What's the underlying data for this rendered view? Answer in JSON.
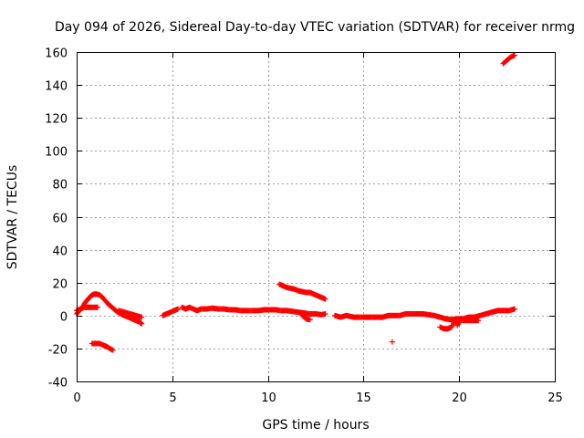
{
  "chart_data": {
    "type": "scatter",
    "title": "Day 094 of 2026, Sidereal Day-to-day VTEC variation (SDTVAR) for receiver nrmg",
    "xlabel": "GPS time / hours",
    "ylabel": "SDTVAR / TECUs",
    "xlim": [
      0,
      25
    ],
    "ylim": [
      -40,
      160
    ],
    "xticks": [
      0,
      5,
      10,
      15,
      20,
      25
    ],
    "yticks": [
      -40,
      -20,
      0,
      20,
      40,
      60,
      80,
      100,
      120,
      140,
      160
    ],
    "grid": true,
    "marker": "+",
    "color": "#ff0000",
    "series": [
      {
        "name": "SDTVAR",
        "segments": [
          [
            [
              0.0,
              1
            ],
            [
              0.15,
              3
            ],
            [
              0.3,
              5
            ],
            [
              0.45,
              8
            ],
            [
              0.6,
              10
            ],
            [
              0.75,
              12
            ],
            [
              0.9,
              13
            ],
            [
              1.05,
              13
            ],
            [
              1.2,
              12.5
            ],
            [
              1.35,
              11
            ],
            [
              1.5,
              9
            ],
            [
              1.65,
              7
            ],
            [
              1.8,
              5.5
            ],
            [
              1.95,
              4
            ],
            [
              2.1,
              2.5
            ],
            [
              2.3,
              1
            ],
            [
              2.5,
              0
            ],
            [
              2.7,
              -1
            ],
            [
              2.9,
              -2
            ],
            [
              3.1,
              -3
            ],
            [
              3.3,
              -4
            ],
            [
              3.4,
              -5
            ]
          ],
          [
            [
              0.0,
              3
            ],
            [
              0.2,
              4
            ],
            [
              0.4,
              5
            ],
            [
              0.6,
              5
            ],
            [
              0.8,
              5
            ],
            [
              1.0,
              5
            ],
            [
              1.1,
              5
            ]
          ],
          [
            [
              2.2,
              3
            ],
            [
              2.5,
              2
            ],
            [
              2.8,
              1
            ],
            [
              3.1,
              0
            ],
            [
              3.4,
              -1
            ]
          ],
          [
            [
              0.8,
              -17
            ],
            [
              1.0,
              -17
            ],
            [
              1.2,
              -17
            ],
            [
              1.4,
              -18
            ],
            [
              1.6,
              -19
            ],
            [
              1.8,
              -20.5
            ],
            [
              1.9,
              -21
            ]
          ],
          [
            [
              4.5,
              0
            ],
            [
              4.7,
              1
            ],
            [
              4.9,
              2
            ],
            [
              5.1,
              3
            ],
            [
              5.3,
              4
            ]
          ],
          [
            [
              5.5,
              5
            ],
            [
              5.7,
              4
            ],
            [
              5.9,
              5
            ],
            [
              6.1,
              4
            ],
            [
              6.3,
              3
            ],
            [
              6.5,
              4
            ],
            [
              6.8,
              4
            ],
            [
              7.1,
              4.5
            ],
            [
              7.4,
              4
            ],
            [
              7.7,
              4
            ],
            [
              8.0,
              3.5
            ],
            [
              8.3,
              3.5
            ],
            [
              8.6,
              3
            ],
            [
              8.9,
              3
            ],
            [
              9.2,
              3
            ],
            [
              9.5,
              3
            ],
            [
              9.8,
              3.5
            ],
            [
              10.1,
              3.5
            ],
            [
              10.4,
              3.5
            ],
            [
              10.7,
              3
            ],
            [
              11.0,
              3
            ],
            [
              11.3,
              2.5
            ],
            [
              11.6,
              2
            ],
            [
              11.9,
              1.5
            ],
            [
              12.2,
              1
            ],
            [
              12.5,
              1
            ],
            [
              12.8,
              0.5
            ],
            [
              13.0,
              1
            ]
          ],
          [
            [
              10.6,
              19
            ],
            [
              10.8,
              18
            ],
            [
              11.0,
              17
            ],
            [
              11.2,
              16.5
            ],
            [
              11.4,
              16
            ],
            [
              11.6,
              15
            ],
            [
              11.8,
              14.5
            ],
            [
              12.0,
              14
            ],
            [
              12.2,
              14
            ],
            [
              12.4,
              13
            ],
            [
              12.6,
              12
            ],
            [
              12.8,
              11
            ],
            [
              13.0,
              10
            ]
          ],
          [
            [
              11.8,
              0
            ],
            [
              12.0,
              -2
            ],
            [
              12.2,
              -2.5
            ]
          ],
          [
            [
              13.5,
              0
            ],
            [
              13.8,
              -1
            ],
            [
              14.1,
              0
            ],
            [
              14.5,
              -1
            ],
            [
              14.8,
              -1
            ],
            [
              15.1,
              -1
            ],
            [
              15.4,
              -1
            ],
            [
              15.7,
              -1
            ],
            [
              16.0,
              -1
            ],
            [
              16.3,
              0
            ],
            [
              16.6,
              0
            ],
            [
              16.9,
              0
            ],
            [
              17.2,
              1
            ],
            [
              17.5,
              1
            ],
            [
              17.8,
              1
            ],
            [
              18.1,
              1
            ],
            [
              18.4,
              0.5
            ],
            [
              18.7,
              0
            ],
            [
              19.0,
              -1
            ],
            [
              19.3,
              -2
            ],
            [
              19.6,
              -2.5
            ],
            [
              19.9,
              -2
            ],
            [
              20.2,
              -2
            ],
            [
              20.5,
              -1
            ],
            [
              20.8,
              -1
            ],
            [
              21.1,
              0
            ],
            [
              21.4,
              1
            ],
            [
              21.7,
              2
            ],
            [
              22.0,
              3
            ],
            [
              22.3,
              3
            ],
            [
              22.6,
              3
            ],
            [
              22.9,
              4
            ]
          ],
          [
            [
              19.0,
              -7
            ],
            [
              19.2,
              -8
            ],
            [
              19.4,
              -8
            ],
            [
              19.6,
              -7
            ],
            [
              19.7,
              -5
            ],
            [
              19.8,
              -3
            ],
            [
              19.9,
              -6
            ],
            [
              20.0,
              -4
            ]
          ],
          [
            [
              20.0,
              -2
            ],
            [
              20.2,
              -3
            ],
            [
              20.4,
              -3
            ],
            [
              20.7,
              -3
            ],
            [
              21.0,
              -3
            ]
          ],
          [
            [
              16.5,
              -16
            ]
          ],
          [
            [
              22.3,
              153
            ],
            [
              22.5,
              155
            ],
            [
              22.7,
              157
            ],
            [
              22.9,
              158
            ]
          ]
        ]
      }
    ]
  }
}
